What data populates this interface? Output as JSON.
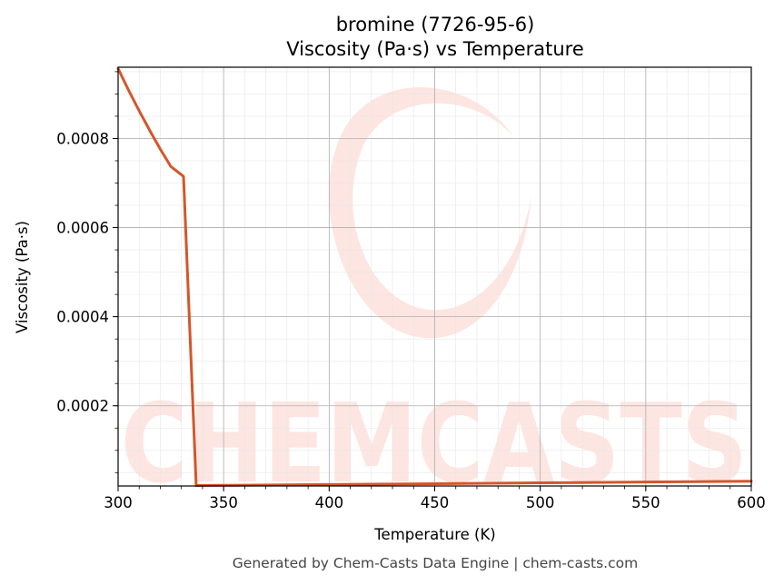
{
  "chart_data": {
    "type": "line",
    "title_line1": "bromine (7726-95-6)",
    "title_line2": "Viscosity (Pa·s) vs Temperature",
    "xlabel": "Temperature (K)",
    "ylabel": "Viscosity (Pa·s)",
    "xlim": [
      300,
      600
    ],
    "ylim": [
      2e-05,
      0.00096
    ],
    "xticks": [
      {
        "value": 300,
        "label": "300"
      },
      {
        "value": 350,
        "label": "350"
      },
      {
        "value": 400,
        "label": "400"
      },
      {
        "value": 450,
        "label": "450"
      },
      {
        "value": 500,
        "label": "500"
      },
      {
        "value": 550,
        "label": "550"
      },
      {
        "value": 600,
        "label": "600"
      }
    ],
    "yticks": [
      {
        "value": 0.0002,
        "label": "0.0002"
      },
      {
        "value": 0.0004,
        "label": "0.0004"
      },
      {
        "value": 0.0006,
        "label": "0.0006"
      },
      {
        "value": 0.0008,
        "label": "0.0008"
      }
    ],
    "grid": true,
    "series": [
      {
        "color": "#d4562a",
        "x": [
          300,
          305,
          310,
          315,
          320,
          325,
          331,
          337,
          340,
          350,
          400,
          450,
          500,
          550,
          600
        ],
        "y": [
          0.000957,
          0.000908,
          0.000862,
          0.000818,
          0.000776,
          0.000737,
          0.000715,
          2.1e-05,
          2.12e-05,
          2.15e-05,
          2.33e-05,
          2.52e-05,
          2.71e-05,
          2.9e-05,
          3.08e-05
        ]
      }
    ]
  },
  "watermark": {
    "text": "CHEMCASTS",
    "color": "#fde1dc"
  },
  "footer": {
    "text": "Generated by Chem-Casts Data Engine | chem-casts.com"
  }
}
